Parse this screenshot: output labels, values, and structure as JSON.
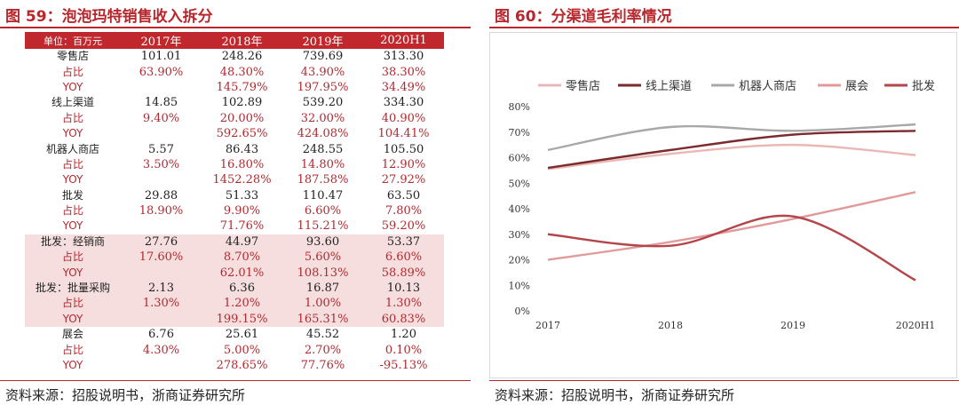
{
  "left_panel": {
    "title": "图 59：泡泡玛特销售收入拆分",
    "source": "资料来源：招股说明书，浙商证券研究所",
    "table": {
      "headers": [
        "单位：百万元",
        "2017年",
        "2018年",
        "2019年",
        "2020H1"
      ],
      "rows": [
        {
          "cells": [
            "零售店",
            "101.01",
            "248.26",
            "739.69",
            "313.30"
          ],
          "kind": "main",
          "shade": false
        },
        {
          "cells": [
            "占比",
            "63.90%",
            "48.30%",
            "43.90%",
            "38.30%"
          ],
          "kind": "sub",
          "shade": false
        },
        {
          "cells": [
            "YOY",
            "",
            "145.79%",
            "197.95%",
            "34.49%"
          ],
          "kind": "sub",
          "shade": false
        },
        {
          "cells": [
            "线上渠道",
            "14.85",
            "102.89",
            "539.20",
            "334.30"
          ],
          "kind": "main",
          "shade": false
        },
        {
          "cells": [
            "占比",
            "9.40%",
            "20.00%",
            "32.00%",
            "40.90%"
          ],
          "kind": "sub",
          "shade": false
        },
        {
          "cells": [
            "YOY",
            "",
            "592.65%",
            "424.08%",
            "104.41%"
          ],
          "kind": "sub",
          "shade": false
        },
        {
          "cells": [
            "机器人商店",
            "5.57",
            "86.43",
            "248.55",
            "105.50"
          ],
          "kind": "main",
          "shade": false
        },
        {
          "cells": [
            "占比",
            "3.50%",
            "16.80%",
            "14.80%",
            "12.90%"
          ],
          "kind": "sub",
          "shade": false
        },
        {
          "cells": [
            "YOY",
            "",
            "1452.28%",
            "187.58%",
            "27.92%"
          ],
          "kind": "sub",
          "shade": false
        },
        {
          "cells": [
            "批发",
            "29.88",
            "51.33",
            "110.47",
            "63.50"
          ],
          "kind": "main",
          "shade": false
        },
        {
          "cells": [
            "占比",
            "18.90%",
            "9.90%",
            "6.60%",
            "7.80%"
          ],
          "kind": "sub",
          "shade": false
        },
        {
          "cells": [
            "YOY",
            "",
            "71.76%",
            "115.21%",
            "59.20%"
          ],
          "kind": "sub",
          "shade": false
        },
        {
          "cells": [
            "批发：经销商",
            "27.76",
            "44.97",
            "93.60",
            "53.37"
          ],
          "kind": "main",
          "shade": true
        },
        {
          "cells": [
            "占比",
            "17.60%",
            "8.70%",
            "5.60%",
            "6.60%"
          ],
          "kind": "sub",
          "shade": true
        },
        {
          "cells": [
            "YOY",
            "",
            "62.01%",
            "108.13%",
            "58.89%"
          ],
          "kind": "sub",
          "shade": true
        },
        {
          "cells": [
            "批发：批量采购",
            "2.13",
            "6.36",
            "16.87",
            "10.13"
          ],
          "kind": "main",
          "shade": true
        },
        {
          "cells": [
            "占比",
            "1.30%",
            "1.20%",
            "1.00%",
            "1.30%"
          ],
          "kind": "sub",
          "shade": true
        },
        {
          "cells": [
            "YOY",
            "",
            "199.15%",
            "165.31%",
            "60.83%"
          ],
          "kind": "sub",
          "shade": true
        },
        {
          "cells": [
            "展会",
            "6.76",
            "25.61",
            "45.52",
            "1.20"
          ],
          "kind": "main",
          "shade": false
        },
        {
          "cells": [
            "占比",
            "4.30%",
            "5.00%",
            "2.70%",
            "0.10%"
          ],
          "kind": "sub",
          "shade": false
        },
        {
          "cells": [
            "YOY",
            "",
            "278.65%",
            "77.76%",
            "-95.13%"
          ],
          "kind": "sub",
          "shade": false
        }
      ]
    }
  },
  "right_panel": {
    "title": "图 60：分渠道毛利率情况",
    "source": "资料来源：招股说明书，浙商证券研究所"
  },
  "chart_data": {
    "type": "line",
    "title": "",
    "xlabel": "",
    "ylabel": "",
    "x": [
      "2017",
      "2018",
      "2019",
      "2020H1"
    ],
    "ylim": [
      0,
      80
    ],
    "yticks": [
      "0%",
      "10%",
      "20%",
      "30%",
      "40%",
      "50%",
      "60%",
      "70%",
      "80%"
    ],
    "legend_position": "top",
    "grid": false,
    "series": [
      {
        "name": "零售店",
        "color": "#eab8b4",
        "values": [
          55.5,
          61.5,
          65.0,
          61.0
        ]
      },
      {
        "name": "线上渠道",
        "color": "#7b2a2e",
        "values": [
          56.0,
          63.0,
          69.0,
          70.5
        ]
      },
      {
        "name": "机器人商店",
        "color": "#a8a8a8",
        "values": [
          63.0,
          72.0,
          70.5,
          73.0
        ]
      },
      {
        "name": "展会",
        "color": "#e09a9a",
        "values": [
          20.0,
          27.0,
          36.0,
          46.5
        ]
      },
      {
        "name": "批发",
        "color": "#b4454a",
        "values": [
          30.0,
          25.5,
          37.0,
          12.0
        ]
      }
    ]
  }
}
